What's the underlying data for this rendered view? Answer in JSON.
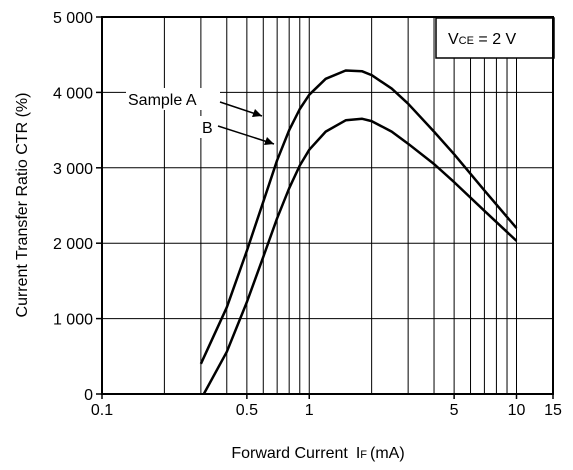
{
  "chart_data": {
    "type": "line",
    "x_scale": "log",
    "xlim": [
      0.1,
      15
    ],
    "ylim": [
      0,
      5000
    ],
    "grid": true,
    "xlabel": "Forward Current",
    "xlabel_symbol": "I",
    "xlabel_sub": "F",
    "xlabel_unit": "(mA)",
    "ylabel": "Current Transfer Ratio  CTR (%)",
    "y_ticks": [
      {
        "value": 0,
        "label": "0"
      },
      {
        "value": 1000,
        "label": "1 000"
      },
      {
        "value": 2000,
        "label": "2 000"
      },
      {
        "value": 3000,
        "label": "3 000"
      },
      {
        "value": 4000,
        "label": "4 000"
      },
      {
        "value": 5000,
        "label": "5 000"
      }
    ],
    "x_ticks": [
      {
        "value": 0.1,
        "label": "0.1"
      },
      {
        "value": 0.5,
        "label": "0.5"
      },
      {
        "value": 1,
        "label": "1"
      },
      {
        "value": 5,
        "label": "5"
      },
      {
        "value": 10,
        "label": "10"
      },
      {
        "value": 15,
        "label": "15"
      }
    ],
    "condition": {
      "symbol": "V",
      "sub": "CE",
      "rest": " = 2 V"
    },
    "series": [
      {
        "name": "Sample A",
        "x": [
          0.3,
          0.4,
          0.5,
          0.6,
          0.7,
          0.8,
          0.9,
          1.0,
          1.2,
          1.5,
          1.8,
          2.0,
          2.5,
          3,
          4,
          5,
          7,
          10
        ],
        "y": [
          400,
          1150,
          1900,
          2550,
          3100,
          3500,
          3780,
          3970,
          4180,
          4290,
          4280,
          4230,
          4050,
          3850,
          3480,
          3180,
          2700,
          2200
        ]
      },
      {
        "name": "B",
        "x": [
          0.31,
          0.4,
          0.5,
          0.6,
          0.7,
          0.8,
          0.9,
          1.0,
          1.2,
          1.5,
          1.8,
          2.0,
          2.5,
          3,
          4,
          5,
          7,
          10
        ],
        "y": [
          0,
          560,
          1220,
          1820,
          2330,
          2730,
          3030,
          3240,
          3480,
          3630,
          3650,
          3620,
          3480,
          3320,
          3050,
          2810,
          2430,
          2030
        ]
      }
    ]
  }
}
